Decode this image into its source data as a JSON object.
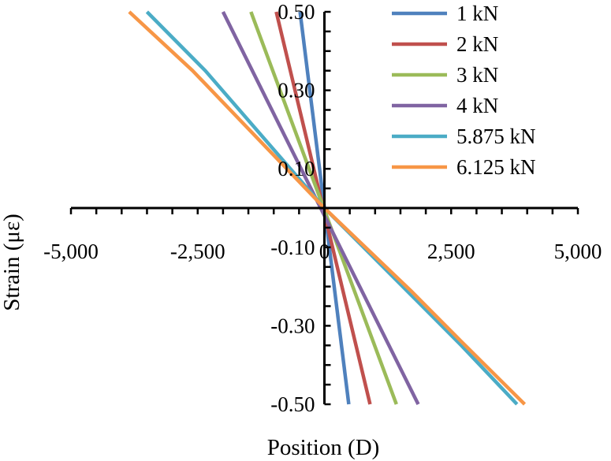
{
  "chart_data": {
    "type": "line",
    "title": "",
    "xlabel": "Position (D)",
    "ylabel": "Strain (με)",
    "xlim": [
      -5000,
      5000
    ],
    "ylim": [
      -0.5,
      0.5
    ],
    "x_ticks": [
      -5000,
      -2500,
      0,
      2500,
      5000
    ],
    "x_tick_labels": [
      "-5,000",
      "-2,500",
      "0",
      "2,500",
      "5,000"
    ],
    "y_ticks": [
      -0.5,
      -0.3,
      -0.1,
      0.1,
      0.3,
      0.5
    ],
    "y_tick_labels": [
      "-0.50",
      "-0.30",
      "-0.10",
      "0.10",
      "0.30",
      "0.50"
    ],
    "grid": false,
    "legend_position": "top-right",
    "series": [
      {
        "name": "1 kN",
        "color": "#4f81bd",
        "points": [
          [
            -480,
            0.5
          ],
          [
            480,
            -0.5
          ]
        ]
      },
      {
        "name": "2 kN",
        "color": "#c0504d",
        "points": [
          [
            -950,
            0.5
          ],
          [
            900,
            -0.5
          ]
        ]
      },
      {
        "name": "3 kN",
        "color": "#9bbb59",
        "points": [
          [
            -1450,
            0.5
          ],
          [
            1420,
            -0.5
          ]
        ]
      },
      {
        "name": "4 kN",
        "color": "#8064a2",
        "points": [
          [
            -2000,
            0.5
          ],
          [
            1850,
            -0.5
          ]
        ]
      },
      {
        "name": "5.875 kN",
        "color": "#4bacc6",
        "points": [
          [
            -3500,
            0.5
          ],
          [
            -2350,
            0.35
          ],
          [
            0,
            0.0
          ],
          [
            1700,
            -0.22
          ],
          [
            2700,
            -0.35
          ],
          [
            3800,
            -0.5
          ]
        ]
      },
      {
        "name": "6.125 kN",
        "color": "#f79646",
        "points": [
          [
            -3850,
            0.5
          ],
          [
            -2600,
            0.35
          ],
          [
            0,
            0.0
          ],
          [
            1700,
            -0.21
          ],
          [
            2700,
            -0.34
          ],
          [
            3950,
            -0.5
          ]
        ]
      }
    ]
  }
}
